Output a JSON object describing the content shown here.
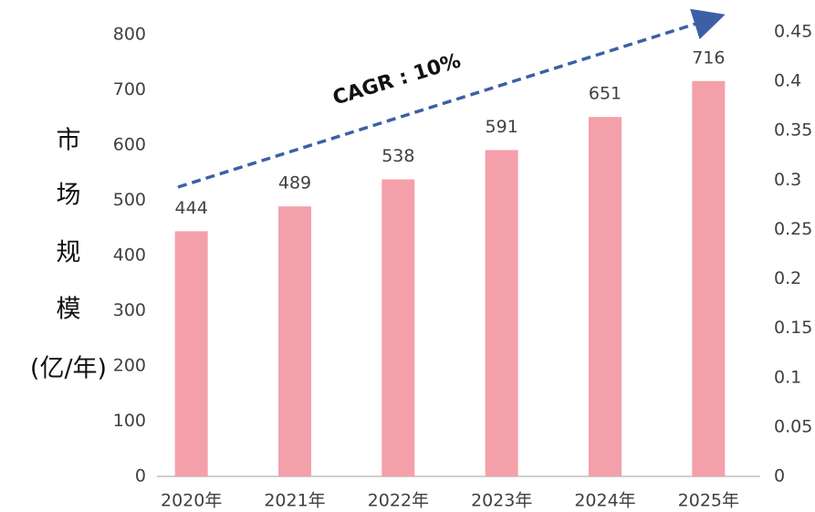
{
  "chart_data": {
    "type": "bar",
    "categories": [
      "2020年",
      "2021年",
      "2022年",
      "2023年",
      "2024年",
      "2025年"
    ],
    "values": [
      444,
      489,
      538,
      591,
      651,
      716
    ],
    "color": "#f4a0ab",
    "ylim": [
      0,
      800
    ],
    "yticks": [
      0,
      100,
      200,
      300,
      400,
      500,
      600,
      700,
      800
    ],
    "y2lim": [
      0,
      0.45
    ],
    "y2ticks": [
      0,
      0.05,
      0.1,
      0.15,
      0.2,
      0.25,
      0.3,
      0.35,
      0.4,
      0.45
    ],
    "ylabel": [
      "市",
      "场",
      "规",
      "模",
      "(亿/年)"
    ],
    "annotation": "CAGR : 10%",
    "grid": false
  }
}
